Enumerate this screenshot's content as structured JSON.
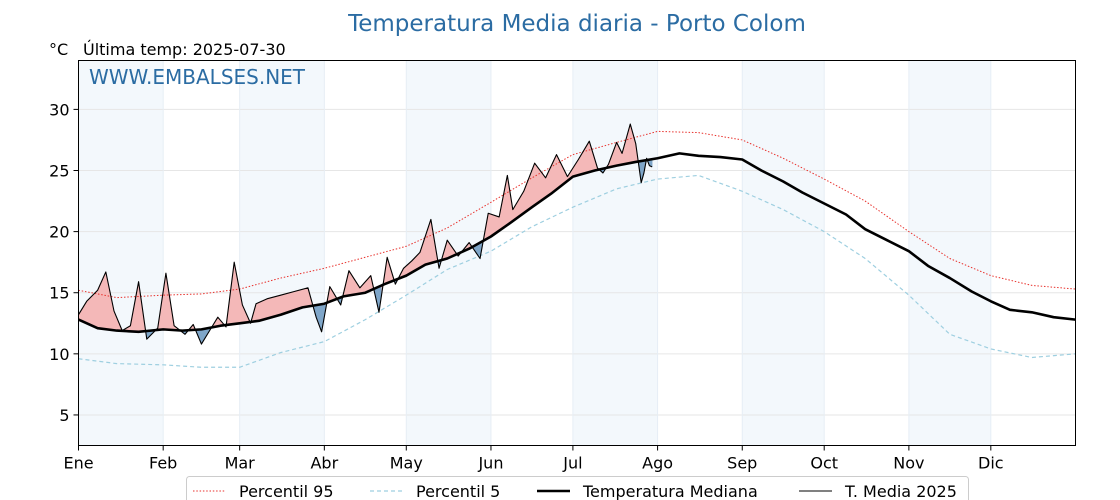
{
  "chart_data": {
    "type": "line",
    "title": "Temperatura Media diaria - Porto Colom",
    "unit": "°C",
    "last_temp": "Última temp: 2025-07-30",
    "watermark": "WWW.EMBALSES.NET",
    "xlabel": "",
    "ylabel": "",
    "ylim": [
      2.5,
      34
    ],
    "y_ticks": [
      5,
      10,
      15,
      20,
      25,
      30
    ],
    "x_range_days": [
      1,
      366
    ],
    "months": [
      {
        "label": "Ene",
        "day": 1
      },
      {
        "label": "Feb",
        "day": 32
      },
      {
        "label": "Mar",
        "day": 60
      },
      {
        "label": "Abr",
        "day": 91
      },
      {
        "label": "May",
        "day": 121
      },
      {
        "label": "Jun",
        "day": 152
      },
      {
        "label": "Jul",
        "day": 182
      },
      {
        "label": "Ago",
        "day": 213
      },
      {
        "label": "Sep",
        "day": 244
      },
      {
        "label": "Oct",
        "day": 274
      },
      {
        "label": "Nov",
        "day": 305
      },
      {
        "label": "Dic",
        "day": 335
      }
    ],
    "grid": true,
    "legend_position": "bottom",
    "series": [
      {
        "name": "Percentil 95",
        "color": "#e8322d",
        "style": "dotted",
        "x": [
          1,
          15,
          32,
          46,
          60,
          75,
          91,
          106,
          121,
          136,
          152,
          167,
          182,
          198,
          213,
          228,
          244,
          259,
          274,
          289,
          305,
          320,
          335,
          350,
          366
        ],
        "values": [
          15.2,
          14.6,
          14.8,
          14.9,
          15.3,
          16.2,
          17.0,
          17.9,
          18.8,
          20.3,
          22.4,
          24.4,
          26.3,
          27.3,
          28.2,
          28.1,
          27.5,
          26.0,
          24.3,
          22.5,
          20.0,
          17.8,
          16.4,
          15.6,
          15.3
        ]
      },
      {
        "name": "Percentil 5",
        "color": "#9ecfe0",
        "style": "dashed",
        "x": [
          1,
          15,
          32,
          46,
          60,
          75,
          91,
          106,
          121,
          136,
          152,
          167,
          182,
          198,
          213,
          228,
          244,
          259,
          274,
          289,
          305,
          320,
          335,
          350,
          366
        ],
        "values": [
          9.6,
          9.2,
          9.1,
          8.9,
          8.9,
          10.1,
          11.0,
          12.8,
          14.8,
          16.9,
          18.4,
          20.4,
          22.0,
          23.5,
          24.3,
          24.6,
          23.3,
          21.8,
          20.0,
          17.8,
          14.8,
          11.6,
          10.4,
          9.7,
          10.0
        ]
      },
      {
        "name": "Temperatura Mediana",
        "color": "#000000",
        "style": "solid-bold",
        "x": [
          1,
          8,
          15,
          23,
          32,
          39,
          46,
          53,
          60,
          67,
          75,
          83,
          91,
          98,
          106,
          113,
          121,
          128,
          136,
          144,
          152,
          159,
          167,
          174,
          182,
          190,
          198,
          205,
          213,
          221,
          228,
          236,
          244,
          251,
          259,
          266,
          274,
          282,
          289,
          297,
          305,
          312,
          320,
          328,
          335,
          342,
          350,
          358,
          366
        ],
        "values": [
          12.8,
          12.1,
          11.9,
          11.8,
          12.0,
          11.9,
          12.0,
          12.3,
          12.5,
          12.7,
          13.2,
          13.8,
          14.1,
          14.7,
          15.0,
          15.7,
          16.4,
          17.3,
          17.8,
          18.6,
          19.6,
          20.7,
          22.0,
          23.1,
          24.5,
          25.0,
          25.4,
          25.7,
          26.0,
          26.4,
          26.2,
          26.1,
          25.9,
          25.0,
          24.1,
          23.2,
          22.3,
          21.4,
          20.2,
          19.3,
          18.4,
          17.2,
          16.2,
          15.1,
          14.3,
          13.6,
          13.4,
          13.0,
          12.8
        ]
      },
      {
        "name": "T. Media 2025",
        "color": "#000000",
        "style": "solid-thin",
        "x": [
          1,
          4,
          8,
          11,
          14,
          17,
          20,
          23,
          26,
          30,
          33,
          36,
          40,
          43,
          46,
          49,
          52,
          55,
          58,
          61,
          64,
          66,
          70,
          75,
          80,
          85,
          88,
          90,
          93,
          97,
          100,
          104,
          108,
          111,
          114,
          117,
          120,
          123,
          126,
          130,
          133,
          136,
          140,
          144,
          148,
          151,
          155,
          158,
          160,
          164,
          168,
          172,
          176,
          180,
          184,
          188,
          191,
          193,
          195,
          198,
          200,
          203,
          205,
          207,
          208,
          209,
          210,
          211
        ],
        "values": [
          13.2,
          14.3,
          15.2,
          16.7,
          13.5,
          11.9,
          12.3,
          15.9,
          11.2,
          12.1,
          16.6,
          12.3,
          11.6,
          12.4,
          10.8,
          11.9,
          13.0,
          12.2,
          17.5,
          14.0,
          12.5,
          14.1,
          14.5,
          14.8,
          15.1,
          15.4,
          13.0,
          11.8,
          15.5,
          14.0,
          16.8,
          15.4,
          16.4,
          13.4,
          17.9,
          15.7,
          17.0,
          17.6,
          18.3,
          21.0,
          17.0,
          19.3,
          18.0,
          19.1,
          17.8,
          21.5,
          21.2,
          24.6,
          21.8,
          23.3,
          25.6,
          24.4,
          26.3,
          24.5,
          25.9,
          27.4,
          25.2,
          24.8,
          25.5,
          27.3,
          26.4,
          28.8,
          27.2,
          24.0,
          24.8,
          26.0,
          25.4,
          25.3
        ]
      }
    ]
  }
}
